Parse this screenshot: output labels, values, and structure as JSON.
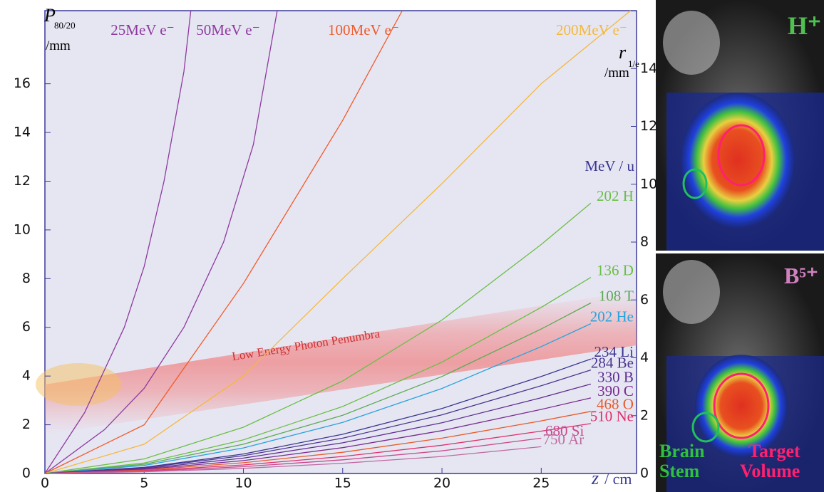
{
  "chart_data": {
    "type": "line",
    "ylabel": {
      "symbol": "P",
      "sub": "80/20",
      "unit": "/mm"
    },
    "y2label": {
      "symbol": "r",
      "sub": "1/e",
      "unit": "/mm"
    },
    "xlabel": {
      "symbol": "z",
      "unit": "/ cm"
    },
    "ion_heading": "MeV / u",
    "annotation": "Low Energy Photon Penumbra",
    "xlim": [
      0,
      29.8
    ],
    "xticks": [
      0,
      5,
      10,
      15,
      20,
      25
    ],
    "ylim": [
      0,
      19
    ],
    "yticks": [
      0,
      2,
      4,
      6,
      8,
      10,
      12,
      14,
      16
    ],
    "y2lim": [
      0,
      16
    ],
    "y2ticks": [
      0,
      2,
      4,
      6,
      8,
      10,
      12,
      14
    ],
    "series": [
      {
        "name": "25MeV e⁻",
        "color": "#8e3a9e",
        "x": [
          0,
          2,
          4,
          5,
          6,
          7,
          7.35
        ],
        "values": [
          0,
          2.5,
          6,
          8.5,
          12,
          16.5,
          19
        ]
      },
      {
        "name": "50MeV e⁻",
        "color": "#8e3a9e",
        "x": [
          0,
          3,
          5,
          7,
          9,
          10.5,
          11.7
        ],
        "values": [
          0,
          1.8,
          3.5,
          6,
          9.5,
          13.5,
          19
        ]
      },
      {
        "name": "100MeV e⁻",
        "color": "#f05a28",
        "x": [
          0,
          5,
          10,
          15,
          18
        ],
        "values": [
          0,
          2,
          7.8,
          14.5,
          19
        ]
      },
      {
        "name": "200MeV e⁻",
        "color": "#f5b83a",
        "x": [
          0,
          5,
          10,
          15,
          20,
          25,
          29.5
        ],
        "values": [
          0,
          1.2,
          4,
          8,
          11.9,
          16,
          19
        ]
      },
      {
        "name": "202 H",
        "color": "#6abf45",
        "x": [
          0,
          5,
          10,
          15,
          20,
          25,
          27.5
        ],
        "values": [
          0,
          0.6,
          1.9,
          3.8,
          6.3,
          9.4,
          11.1
        ]
      },
      {
        "name": "136 D",
        "color": "#6abf45",
        "x": [
          0,
          5,
          10,
          15,
          20,
          25,
          27.5
        ],
        "values": [
          0,
          0.43,
          1.38,
          2.75,
          4.57,
          6.82,
          8.05
        ]
      },
      {
        "name": "108 T",
        "color": "#5aaa55",
        "x": [
          0,
          5,
          10,
          15,
          20,
          25,
          27.5
        ],
        "values": [
          0,
          0.38,
          1.2,
          2.39,
          3.98,
          5.93,
          7
        ]
      },
      {
        "name": "202 He",
        "color": "#27a3dc",
        "x": [
          0,
          5,
          10,
          15,
          20,
          25,
          27.5
        ],
        "values": [
          0,
          0.33,
          1.05,
          2.1,
          3.49,
          5.21,
          6.15
        ]
      },
      {
        "name": "234 Li",
        "color": "#3b3590",
        "x": [
          0,
          5,
          10,
          15,
          20,
          25,
          27.5
        ],
        "values": [
          0,
          0.25,
          0.8,
          1.61,
          2.67,
          3.98,
          4.7
        ]
      },
      {
        "name": "284 Be",
        "color": "#4a3590",
        "x": [
          0,
          5,
          10,
          15,
          20,
          25,
          27.5
        ],
        "values": [
          0,
          0.23,
          0.73,
          1.45,
          2.41,
          3.6,
          4.25
        ]
      },
      {
        "name": "330 B",
        "color": "#5e2d91",
        "x": [
          0,
          5,
          10,
          15,
          20,
          25,
          27.5
        ],
        "values": [
          0,
          0.2,
          0.63,
          1.26,
          2.08,
          3.11,
          3.67
        ]
      },
      {
        "name": "390 C",
        "color": "#7a2c8f",
        "x": [
          0,
          5,
          10,
          15,
          20,
          25,
          27.5
        ],
        "values": [
          0,
          0.17,
          0.53,
          1.06,
          1.76,
          2.63,
          3.1
        ]
      },
      {
        "name": "468 O",
        "color": "#e85a2a",
        "x": [
          0,
          5,
          10,
          15,
          20,
          25,
          27.5
        ],
        "values": [
          0,
          0.14,
          0.44,
          0.87,
          1.45,
          2.16,
          2.55
        ]
      },
      {
        "name": "510 Ne",
        "color": "#e0306a",
        "x": [
          0,
          5,
          10,
          15,
          20,
          25,
          27.5
        ],
        "values": [
          0,
          0.11,
          0.35,
          0.7,
          1.16,
          1.74,
          2.05
        ]
      },
      {
        "name": "680 Si",
        "color": "#c94a8c",
        "x": [
          0,
          5,
          10,
          15,
          20,
          25,
          27.5
        ],
        "values": [
          0,
          0.09,
          0.28,
          0.56,
          0.93,
          1.45,
          null
        ]
      },
      {
        "name": "750 Ar",
        "color": "#c06aa0",
        "x": [
          0,
          5,
          10,
          15,
          20,
          25,
          27.5
        ],
        "values": [
          0,
          0.07,
          0.21,
          0.42,
          0.7,
          1.1,
          null
        ]
      }
    ]
  },
  "images": {
    "top_label": "H⁺",
    "bottom_label": "B⁵⁺",
    "stem": [
      "Brain",
      "Stem"
    ],
    "target": [
      "Target",
      "Volume"
    ]
  }
}
